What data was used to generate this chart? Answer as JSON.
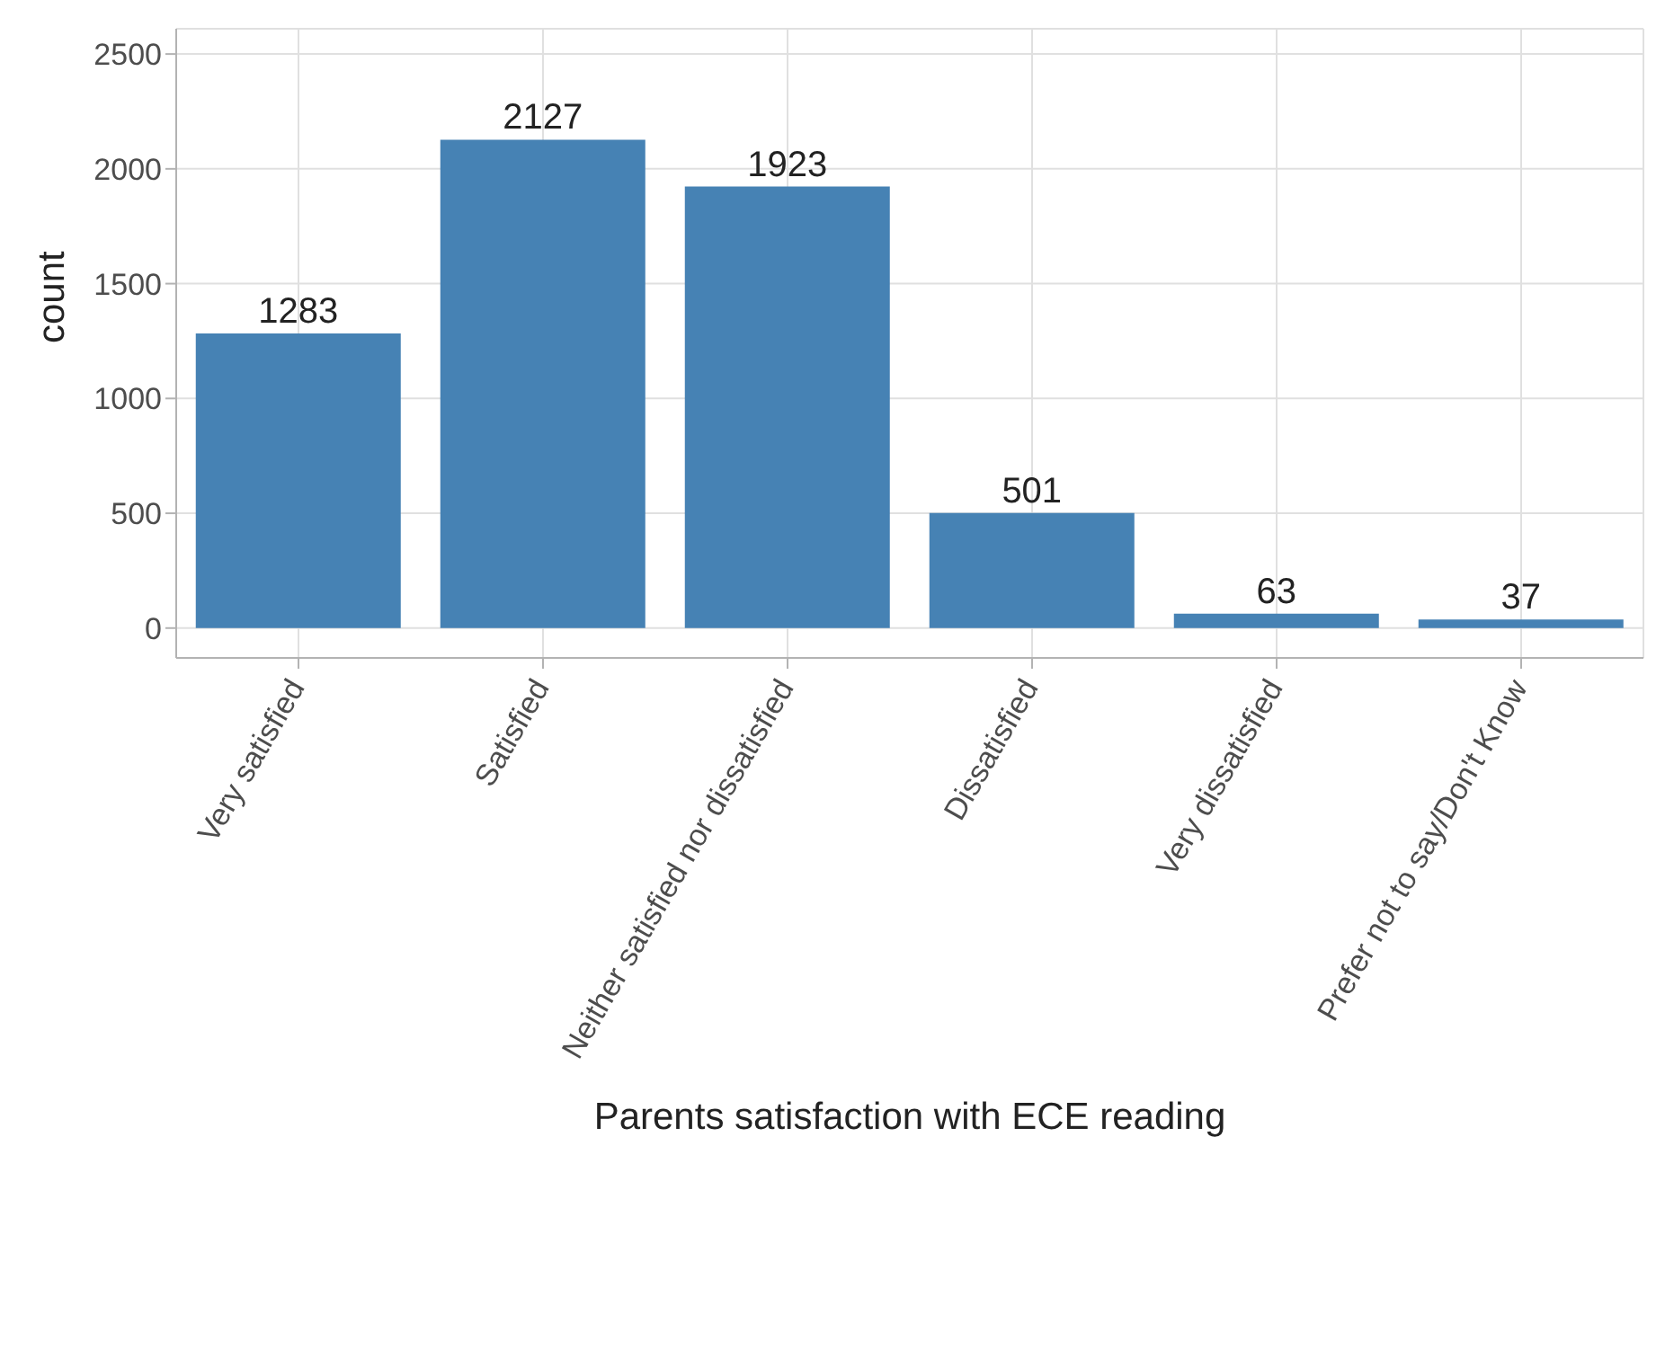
{
  "chart_data": {
    "type": "bar",
    "xlabel": "Parents satisfaction with ECE reading",
    "ylabel": "count",
    "categories": [
      "Very satisfied",
      "Satisfied",
      "Neither satisfied nor dissatisfied",
      "Dissatisfied",
      "Very dissatisfied",
      "Prefer not to say/Don't Know"
    ],
    "values": [
      1283,
      2127,
      1923,
      501,
      63,
      37
    ],
    "color": "#4682b4",
    "data_labels": true,
    "ylim": [
      -130,
      2610
    ],
    "yticks": [
      0,
      500,
      1000,
      1500,
      2000,
      2500
    ],
    "grid": true
  }
}
